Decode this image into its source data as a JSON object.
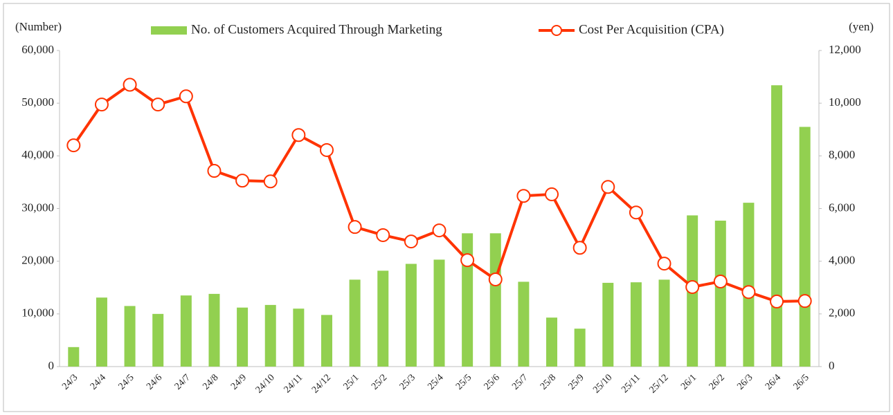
{
  "chart_data": {
    "type": "bar-line",
    "y_label": "(Number)",
    "y2_label": "(yen)",
    "categories": [
      "24/3",
      "24/4",
      "24/5",
      "24/6",
      "24/7",
      "24/8",
      "24/9",
      "24/10",
      "24/11",
      "24/12",
      "25/1",
      "25/2",
      "25/3",
      "25/4",
      "25/5",
      "25/6",
      "25/7",
      "25/8",
      "25/9",
      "25/10",
      "25/11",
      "25/12",
      "26/1",
      "26/2",
      "26/3",
      "26/4",
      "26/5"
    ],
    "series": [
      {
        "name": "No. of Customers Acquired Through Marketing",
        "color": "#92d050",
        "kind": "bar",
        "values": [
          3700,
          13100,
          11500,
          10000,
          13500,
          13800,
          11200,
          11700,
          11000,
          9800,
          16500,
          18200,
          19500,
          20300,
          25300,
          25300,
          16100,
          9300,
          7200,
          15900,
          16000,
          16500,
          28700,
          27700,
          31100,
          53400,
          45500
        ]
      },
      {
        "name": "Cost Per Acquisition (CPA)",
        "color": "#ff3300",
        "kind": "line",
        "axis": "y2",
        "values": [
          8400,
          9950,
          10700,
          9950,
          10260,
          7430,
          7060,
          7030,
          8790,
          8220,
          5300,
          4990,
          4750,
          5170,
          4040,
          3310,
          6480,
          6540,
          4510,
          6820,
          5850,
          3910,
          3020,
          3230,
          2830,
          2470,
          2490
        ]
      }
    ],
    "ylim": [
      0,
      60000
    ],
    "yticks": [
      0,
      {
        "value": 10000,
        "label": "10,000"
      },
      {
        "value": 20000,
        "label": "20,000"
      },
      {
        "value": 30000,
        "label": "30,000"
      },
      {
        "value": 40000,
        "label": "40,000"
      },
      {
        "value": 50000,
        "label": "50,000"
      },
      {
        "value": 60000,
        "label": "60,000"
      }
    ],
    "y2lim": [
      0,
      12000
    ],
    "y2ticks": [
      0,
      {
        "value": 2000,
        "label": "2,000"
      },
      {
        "value": 4000,
        "label": "4,000"
      },
      {
        "value": 6000,
        "label": "6,000"
      },
      {
        "value": 8000,
        "label": "8,000"
      },
      {
        "value": 10000,
        "label": "10,000"
      },
      {
        "value": 12000,
        "label": "12,000"
      }
    ]
  }
}
